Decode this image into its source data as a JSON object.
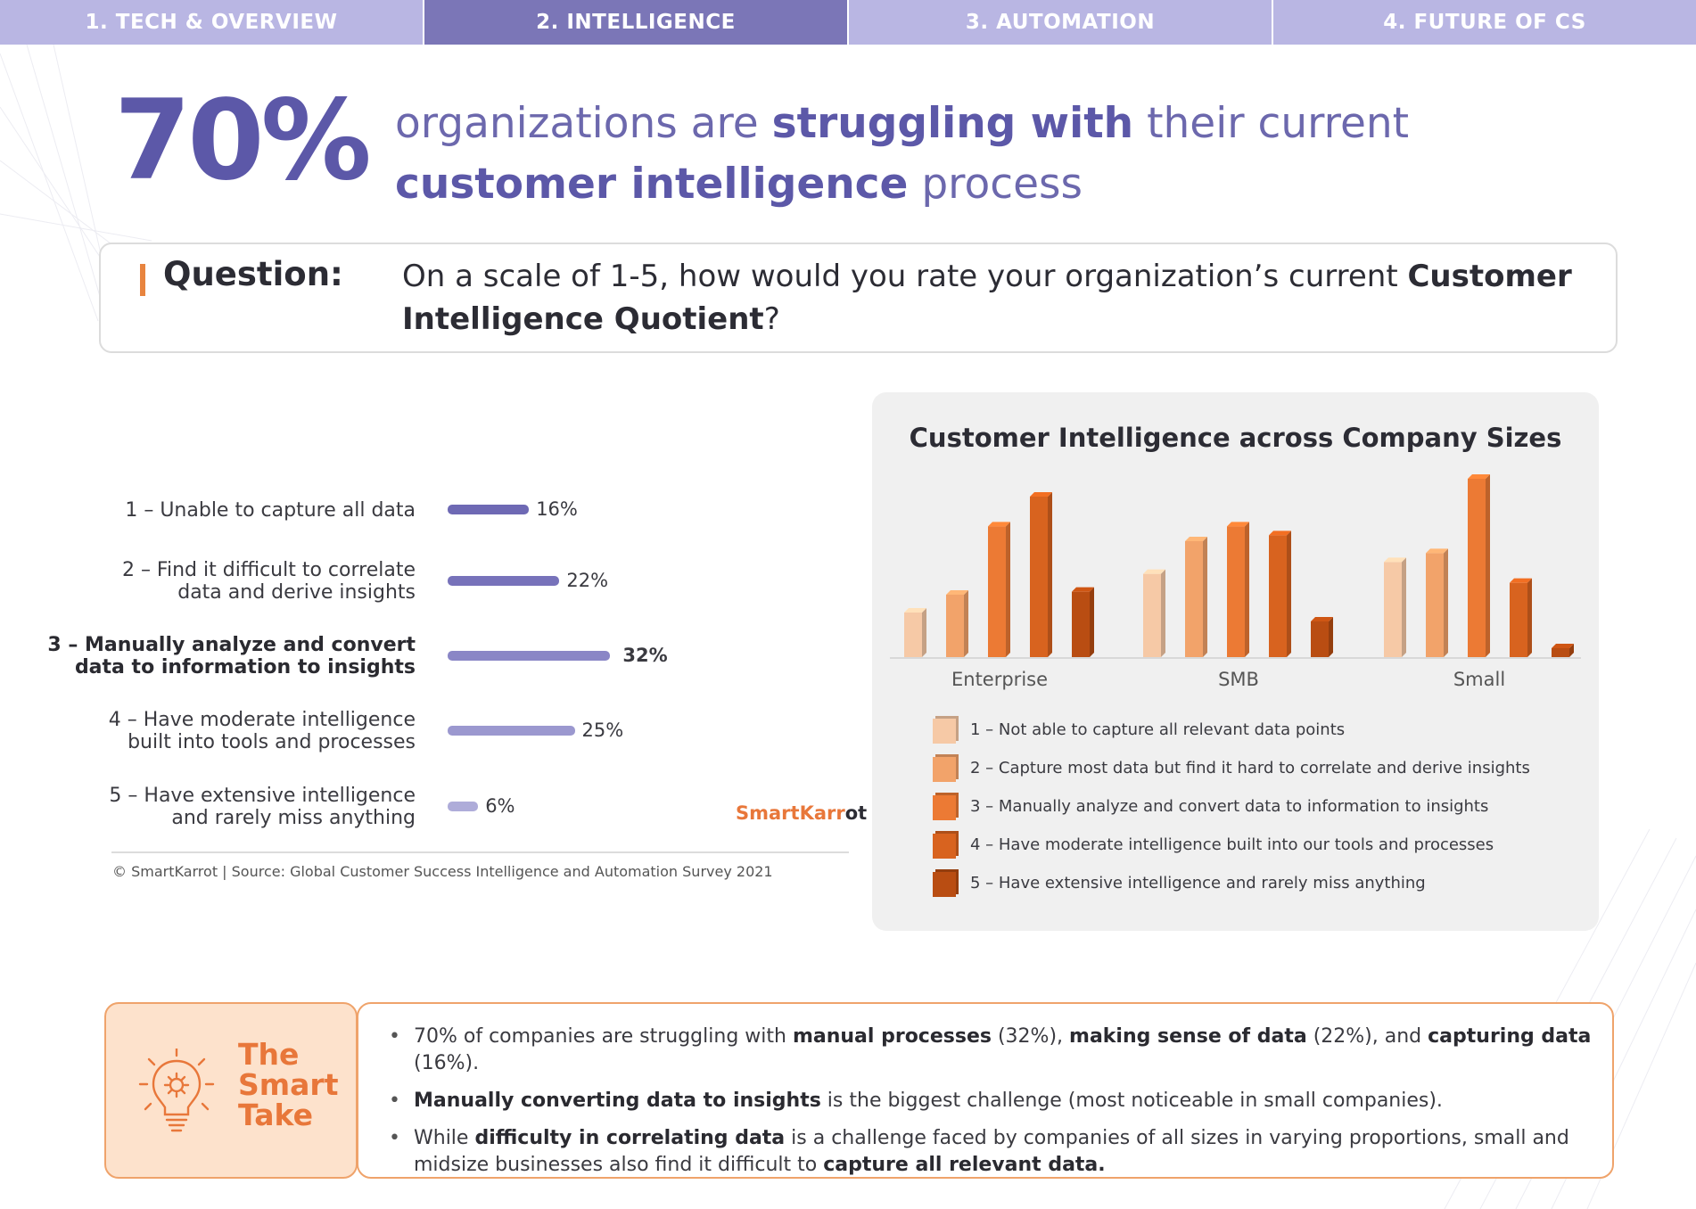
{
  "nav": {
    "tabs": [
      {
        "label": "1. TECH & OVERVIEW",
        "active": false
      },
      {
        "label": "2. INTELLIGENCE",
        "active": true
      },
      {
        "label": "3. AUTOMATION",
        "active": false
      },
      {
        "label": "4. FUTURE OF CS",
        "active": false
      }
    ]
  },
  "headline": {
    "stat": "70%",
    "parts": [
      "organizations are ",
      "struggling with",
      " their current ",
      "customer intelligence",
      " process"
    ]
  },
  "question": {
    "label": "Question:",
    "text_1": "On a scale of 1-5, how would you rate your organization’s current ",
    "text_bold": "Customer Intelligence Quotient",
    "text_2": "?"
  },
  "chart_data": [
    {
      "type": "bar",
      "orientation": "horizontal",
      "categories": [
        "1 – Unable to capture all data",
        "2 – Find it difficult to correlate data and derive insights",
        "3 – Manually analyze and convert data to information to insights",
        "4 – Have moderate intelligence built into tools and processes",
        "5 – Have extensive intelligence and rarely miss anything"
      ],
      "label_lines": [
        [
          "1 – Unable to capture all data"
        ],
        [
          "2 – Find it difficult to correlate",
          "data and derive insights"
        ],
        [
          "3 – Manually analyze and convert",
          "data to information to insights"
        ],
        [
          "4 – Have moderate intelligence",
          "built into tools and processes"
        ],
        [
          "5 – Have extensive intelligence",
          "and rarely miss anything"
        ]
      ],
      "values": [
        16,
        22,
        32,
        25,
        6
      ],
      "value_labels": [
        "16%",
        "22%",
        "32%",
        "25%",
        "6%"
      ],
      "highlight_index": 2,
      "colors": [
        "#6e69b4",
        "#7772ba",
        "#8a86c6",
        "#9b98cf",
        "#aeacd9"
      ],
      "title": "",
      "xlabel": "",
      "ylabel": ""
    },
    {
      "type": "bar",
      "title": "Customer Intelligence across Company Sizes",
      "categories": [
        "Enterprise",
        "SMB",
        "Small"
      ],
      "series": [
        {
          "name": "1 – Not able to capture all relevant data points",
          "values": [
            15,
            28,
            32
          ],
          "color": "#f6c9a6"
        },
        {
          "name": "2 – Capture most data but find it hard to correlate and derive insights",
          "values": [
            21,
            39,
            35
          ],
          "color": "#f2a36a"
        },
        {
          "name": "3 – Manually analyze and convert data to information to insights",
          "values": [
            44,
            44,
            60
          ],
          "color": "#ec7a34"
        },
        {
          "name": "4 – Have moderate intelligence built into our tools and processes",
          "values": [
            54,
            41,
            25
          ],
          "color": "#d8631f"
        },
        {
          "name": "5 – Have extensive intelligence and rarely miss anything",
          "values": [
            22,
            12,
            3
          ],
          "color": "#b94d12"
        }
      ],
      "ylim": [
        0,
        60
      ],
      "grid": false,
      "legend_position": "bottom",
      "xlabel": "",
      "ylabel": ""
    }
  ],
  "logo_text": {
    "a": "SmartKarr",
    "b": "ot"
  },
  "source": "© SmartKarrot | Source: Global Customer Success Intelligence and Automation Survey 2021",
  "smart_take": {
    "title_lines": [
      "The",
      "Smart",
      "Take"
    ],
    "bullets": [
      [
        [
          "70% of companies are struggling with ",
          false
        ],
        [
          "manual processes",
          true
        ],
        [
          " (32%), ",
          false
        ],
        [
          "making sense of data",
          true
        ],
        [
          " (22%), and ",
          false
        ],
        [
          "capturing data",
          true
        ],
        [
          " (16%).",
          false
        ]
      ],
      [
        [
          "Manually converting data to insights",
          true
        ],
        [
          " is the biggest challenge (most noticeable in small companies).",
          false
        ]
      ],
      [
        [
          "While ",
          false
        ],
        [
          "difficulty in correlating data",
          true
        ],
        [
          " is a challenge faced by companies of all sizes in varying proportions, small and midsize businesses also find it difficult to ",
          false
        ],
        [
          "capture all relevant data.",
          true
        ]
      ]
    ]
  }
}
